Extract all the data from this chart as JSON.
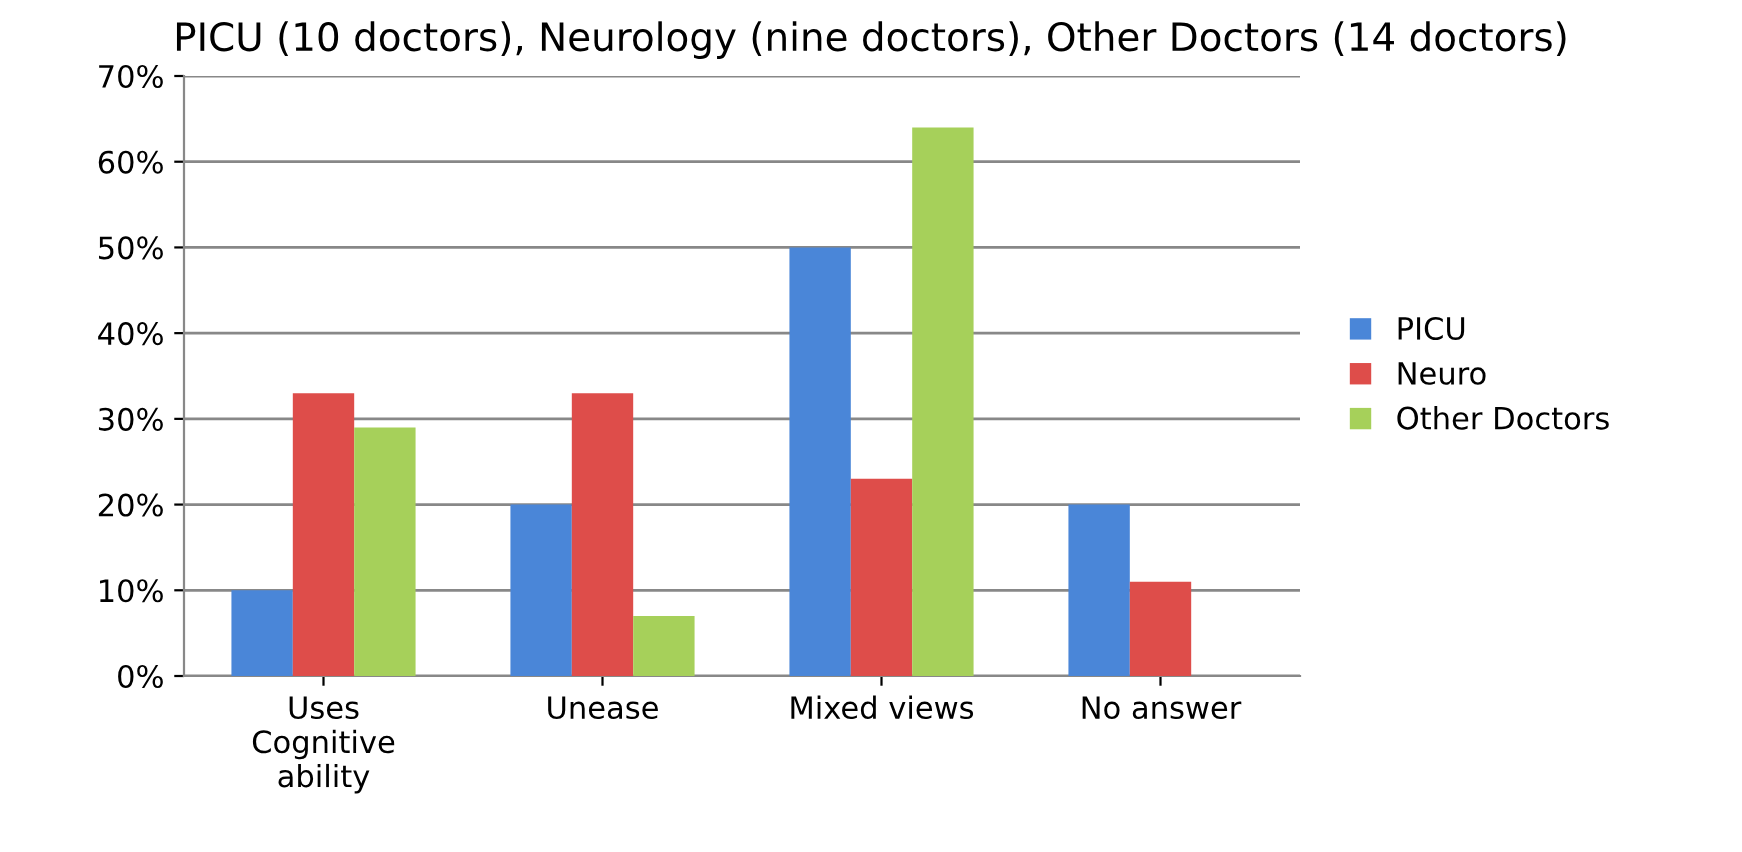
{
  "chart_data": {
    "type": "bar",
    "title": "PICU (10 doctors), Neurology (nine doctors), Other Doctors (14 doctors)",
    "categories": [
      "Uses\nCognitive\nability",
      "Unease",
      "Mixed views",
      "No answer"
    ],
    "series": [
      {
        "name": "PICU",
        "color": "#4a86d8",
        "values": [
          10,
          20,
          50,
          20
        ]
      },
      {
        "name": "Neuro",
        "color": "#de4d4a",
        "values": [
          33,
          33,
          23,
          11
        ]
      },
      {
        "name": "Other Doctors",
        "color": "#a6d05a",
        "values": [
          29,
          7,
          64,
          0
        ]
      }
    ],
    "ylim": [
      0,
      70
    ],
    "yticks": [
      {
        "value": 0,
        "label": "0%"
      },
      {
        "value": 10,
        "label": "10%"
      },
      {
        "value": 20,
        "label": "20%"
      },
      {
        "value": 30,
        "label": "30%"
      },
      {
        "value": 40,
        "label": "40%"
      },
      {
        "value": 50,
        "label": "50%"
      },
      {
        "value": 60,
        "label": "60%"
      },
      {
        "value": 70,
        "label": "70%"
      }
    ],
    "grid": "y",
    "legend": "right"
  }
}
